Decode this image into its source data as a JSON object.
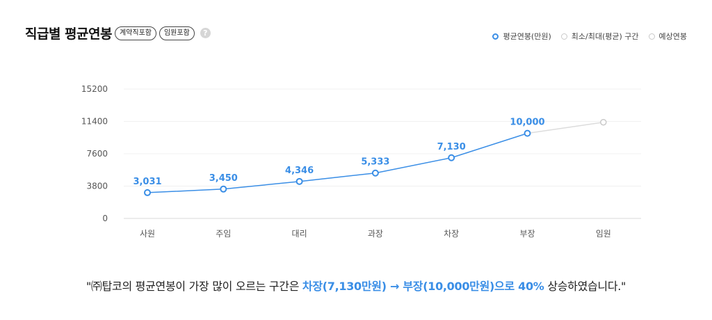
{
  "header": {
    "title": "직급별 평균연봉",
    "pill_contract": "계약직포함",
    "pill_exec": "임원포함",
    "help_icon": "question-icon"
  },
  "legend": {
    "avg": "평균연봉(만원)",
    "range": "최소/최대(평균) 구간",
    "predicted": "예상연봉"
  },
  "colors": {
    "accent": "#3a8ee6",
    "predicted": "#c9c9c9"
  },
  "chart_data": {
    "type": "line",
    "categories": [
      "사원",
      "주임",
      "대리",
      "과장",
      "차장",
      "부장",
      "임원"
    ],
    "series": [
      {
        "name": "평균연봉(만원)",
        "values": [
          3031,
          3450,
          4346,
          5333,
          7130,
          10000,
          null
        ],
        "labels": [
          "3,031",
          "3,450",
          "4,346",
          "5,333",
          "7,130",
          "10,000",
          ""
        ]
      },
      {
        "name": "예상연봉",
        "values": [
          null,
          null,
          null,
          null,
          null,
          10000,
          11300
        ]
      }
    ],
    "yticks": [
      "15200",
      "11400",
      "7600",
      "3800",
      "0"
    ],
    "ylim": [
      0,
      15200
    ],
    "grid": true
  },
  "summary": {
    "prefix": "\"㈜탑코의 평균연봉이 가장 많이 오르는 구간은 ",
    "highlight": "차장(7,130만원) → 부장(10,000만원)으로 40%",
    "suffix": " 상승하였습니다.\""
  }
}
